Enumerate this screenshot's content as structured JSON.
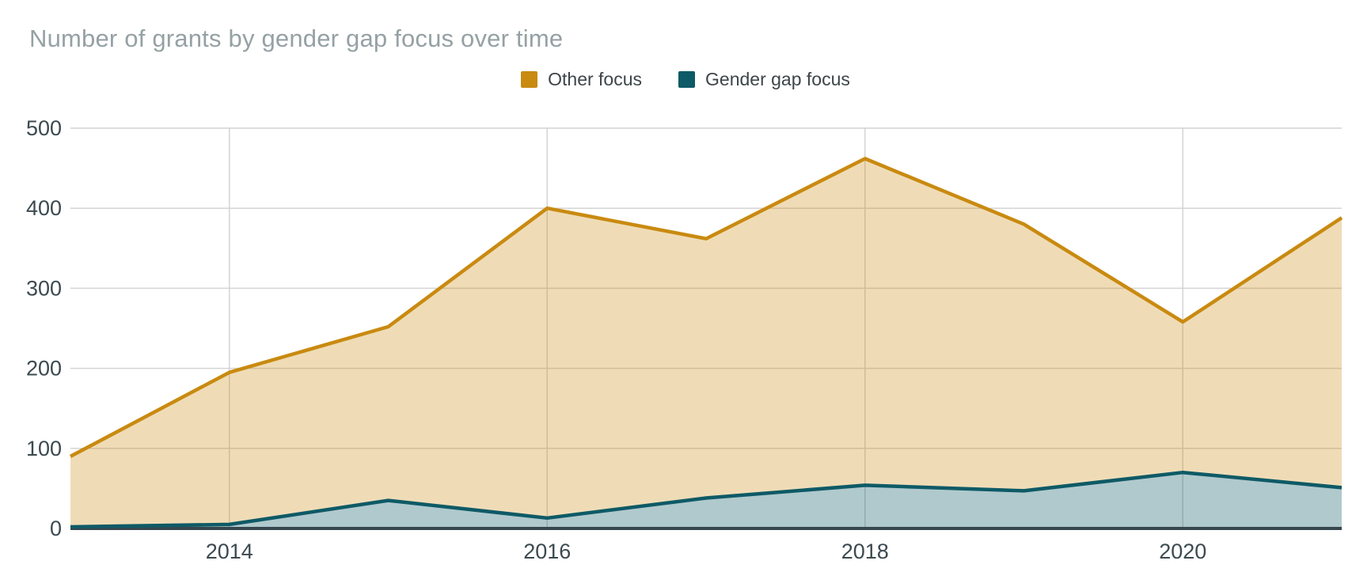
{
  "title": "Number of grants by gender gap focus over time",
  "legend": {
    "items": [
      {
        "label": "Other focus",
        "color": "#C98A10"
      },
      {
        "label": "Gender gap focus",
        "color": "#0E5A66"
      }
    ]
  },
  "chart_data": {
    "type": "area",
    "title": "Number of grants by gender gap focus over time",
    "x": [
      2013,
      2014,
      2015,
      2016,
      2017,
      2018,
      2019,
      2020,
      2021
    ],
    "series": [
      {
        "name": "Other focus",
        "color": "#C98A10",
        "fill_opacity": 0.3,
        "values": [
          90,
          195,
          252,
          400,
          362,
          462,
          380,
          258,
          388
        ]
      },
      {
        "name": "Gender gap focus",
        "color": "#0E5A66",
        "fill_opacity": 0.33,
        "values": [
          2,
          5,
          35,
          13,
          38,
          54,
          47,
          70,
          51
        ]
      }
    ],
    "xlabel": "",
    "ylabel": "",
    "xlim": [
      2013,
      2021
    ],
    "ylim": [
      0,
      500
    ],
    "y_ticks": [
      0,
      100,
      200,
      300,
      400,
      500
    ],
    "x_tick_values": [
      2014,
      2016,
      2018,
      2020
    ],
    "x_tick_labels": [
      "2014",
      "2016",
      "2018",
      "2020"
    ],
    "grid": true,
    "legend_position": "top-center",
    "colors": {
      "grid_line": "#d4d4d4",
      "axis_baseline": "#37474f",
      "axis_text": "#3c4a50",
      "title_text": "#95a1a4"
    }
  }
}
